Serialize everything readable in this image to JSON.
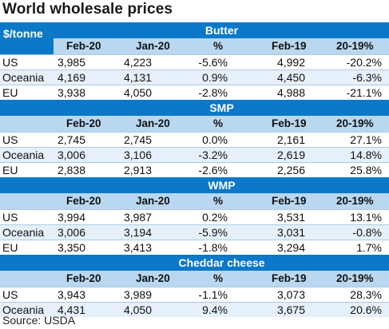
{
  "title": "World wholesale prices",
  "unit_label": "$/tonne",
  "columns": [
    "Feb-20",
    "Jan-20",
    "%",
    "Feb-19",
    "20-19%"
  ],
  "sections": [
    {
      "name": "Butter",
      "rows": [
        {
          "label": "US",
          "values": [
            "3,985",
            "4,223",
            "-5.6%",
            "4,992",
            "-20.2%"
          ]
        },
        {
          "label": "Oceania",
          "values": [
            "4,169",
            "4,131",
            "0.9%",
            "4,450",
            "-6.3%"
          ]
        },
        {
          "label": "EU",
          "values": [
            "3,938",
            "4,050",
            "-2.8%",
            "4,988",
            "-21.1%"
          ]
        }
      ]
    },
    {
      "name": "SMP",
      "rows": [
        {
          "label": "US",
          "values": [
            "2,745",
            "2,745",
            "0.0%",
            "2,161",
            "27.1%"
          ]
        },
        {
          "label": "Oceania",
          "values": [
            "3,006",
            "3,106",
            "-3.2%",
            "2,619",
            "14.8%"
          ]
        },
        {
          "label": "EU",
          "values": [
            "2,838",
            "2,913",
            "-2.6%",
            "2,256",
            "25.8%"
          ]
        }
      ]
    },
    {
      "name": "WMP",
      "rows": [
        {
          "label": "US",
          "values": [
            "3,994",
            "3,987",
            "0.2%",
            "3,531",
            "13.1%"
          ]
        },
        {
          "label": "Oceania",
          "values": [
            "3,006",
            "3,194",
            "-5.9%",
            "3,031",
            "-0.8%"
          ]
        },
        {
          "label": "EU",
          "values": [
            "3,350",
            "3,413",
            "-1.8%",
            "3,294",
            "1.7%"
          ]
        }
      ]
    },
    {
      "name": "Cheddar cheese",
      "rows": [
        {
          "label": "US",
          "values": [
            "3,943",
            "3,989",
            "-1.1%",
            "3,073",
            "28.3%"
          ]
        },
        {
          "label": "Oceania",
          "values": [
            "4,431",
            "4,050",
            "9.4%",
            "3,675",
            "20.6%"
          ]
        }
      ]
    }
  ],
  "source": "Source: USDA",
  "colors": {
    "band": "#0b78c8",
    "header": "#b9d7f0",
    "alt_row": "#e6f0fa"
  }
}
